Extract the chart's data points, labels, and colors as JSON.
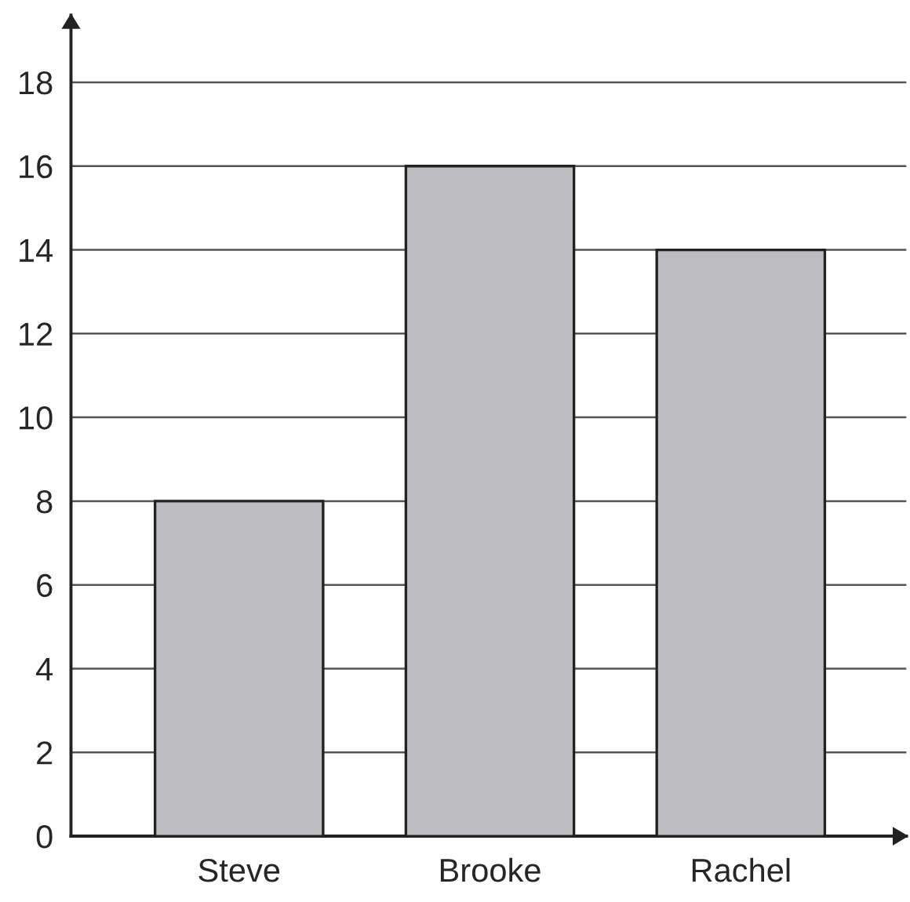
{
  "chart_data": {
    "type": "bar",
    "categories": [
      "Steve",
      "Brooke",
      "Rachel"
    ],
    "values": [
      8,
      16,
      14
    ],
    "color": "#bdbdc0",
    "ylim": [
      0,
      19.6
    ],
    "yticks": [
      0,
      2,
      4,
      6,
      8,
      10,
      12,
      14,
      16,
      18
    ],
    "grid": "y"
  }
}
